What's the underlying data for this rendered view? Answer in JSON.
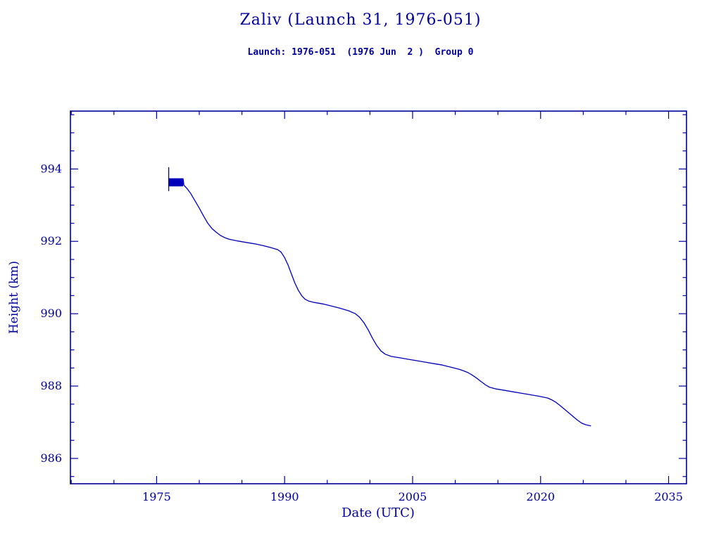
{
  "header": {
    "title": "Zaliv (Launch 31, 1976-051)",
    "subtitle": "Launch: 1976-051  (1976 Jun  2 )  Group 0"
  },
  "colors": {
    "text": "#000099",
    "axis": "#000099",
    "line": "#0000bb",
    "background": "#ffffff"
  },
  "chart_data": {
    "type": "line",
    "title": "Zaliv (Launch 31, 1976-051)",
    "subtitle": "Launch: 1976-051  (1976 Jun  2 )  Group 0",
    "xlabel": "Date (UTC)",
    "ylabel": "Height (km)",
    "xlim": [
      1964.9,
      2037.1
    ],
    "ylim": [
      985.3,
      995.6
    ],
    "xticks": [
      1975,
      1990,
      2005,
      2020,
      2035
    ],
    "yticks": [
      986,
      988,
      990,
      992,
      994
    ],
    "x_minor_ticks": [
      1965,
      1970,
      1980,
      1985,
      1995,
      2000,
      2010,
      2015,
      2025,
      2030
    ],
    "y_minor_ticks": [
      985.5,
      986.5,
      987,
      987.5,
      988.5,
      989,
      989.5,
      990.5,
      991,
      991.5,
      992.5,
      993,
      993.5,
      994.5,
      995,
      995.5
    ],
    "grid": false,
    "legend": "none",
    "noise_segment": {
      "comment": "initial noisy/beat segment of the orbit height track with launch spike",
      "start": 1976.42,
      "end": 1978.1,
      "top": 993.73,
      "bottom": 993.53,
      "spike_top": 994.05,
      "spike_bottom": 993.4,
      "step": 0.04
    },
    "series": [
      {
        "name": "height_km",
        "points": [
          [
            1978.2,
            993.55
          ],
          [
            1978.6,
            993.45
          ],
          [
            1979.0,
            993.32
          ],
          [
            1979.5,
            993.12
          ],
          [
            1980.0,
            992.92
          ],
          [
            1980.5,
            992.7
          ],
          [
            1981.0,
            992.5
          ],
          [
            1981.5,
            992.35
          ],
          [
            1982.0,
            992.25
          ],
          [
            1982.5,
            992.16
          ],
          [
            1983.0,
            992.1
          ],
          [
            1983.5,
            992.06
          ],
          [
            1984.5,
            992.01
          ],
          [
            1985.5,
            991.97
          ],
          [
            1986.5,
            991.93
          ],
          [
            1987.5,
            991.88
          ],
          [
            1988.5,
            991.82
          ],
          [
            1989.2,
            991.77
          ],
          [
            1989.6,
            991.7
          ],
          [
            1990.0,
            991.55
          ],
          [
            1990.4,
            991.35
          ],
          [
            1990.8,
            991.1
          ],
          [
            1991.2,
            990.85
          ],
          [
            1991.6,
            990.65
          ],
          [
            1992.0,
            990.5
          ],
          [
            1992.4,
            990.4
          ],
          [
            1992.8,
            990.35
          ],
          [
            1993.5,
            990.31
          ],
          [
            1994.5,
            990.27
          ],
          [
            1995.5,
            990.21
          ],
          [
            1996.5,
            990.15
          ],
          [
            1997.5,
            990.08
          ],
          [
            1998.3,
            990.0
          ],
          [
            1998.8,
            989.9
          ],
          [
            1999.3,
            989.75
          ],
          [
            1999.8,
            989.55
          ],
          [
            2000.3,
            989.32
          ],
          [
            2000.8,
            989.12
          ],
          [
            2001.3,
            988.97
          ],
          [
            2001.8,
            988.88
          ],
          [
            2002.5,
            988.82
          ],
          [
            2003.5,
            988.78
          ],
          [
            2004.5,
            988.74
          ],
          [
            2005.5,
            988.7
          ],
          [
            2006.5,
            988.66
          ],
          [
            2007.5,
            988.62
          ],
          [
            2008.5,
            988.58
          ],
          [
            2009.5,
            988.52
          ],
          [
            2010.5,
            988.46
          ],
          [
            2011.0,
            988.42
          ],
          [
            2011.5,
            988.37
          ],
          [
            2012.0,
            988.3
          ],
          [
            2012.5,
            988.22
          ],
          [
            2013.0,
            988.13
          ],
          [
            2013.5,
            988.04
          ],
          [
            2014.0,
            987.97
          ],
          [
            2014.8,
            987.92
          ],
          [
            2015.8,
            987.88
          ],
          [
            2016.8,
            987.84
          ],
          [
            2017.8,
            987.8
          ],
          [
            2018.8,
            987.76
          ],
          [
            2019.8,
            987.72
          ],
          [
            2020.8,
            987.67
          ],
          [
            2021.3,
            987.62
          ],
          [
            2021.8,
            987.55
          ],
          [
            2022.3,
            987.46
          ],
          [
            2022.8,
            987.36
          ],
          [
            2023.3,
            987.26
          ],
          [
            2023.8,
            987.16
          ],
          [
            2024.3,
            987.06
          ],
          [
            2024.8,
            986.98
          ],
          [
            2025.3,
            986.93
          ],
          [
            2025.9,
            986.9
          ]
        ]
      }
    ]
  }
}
